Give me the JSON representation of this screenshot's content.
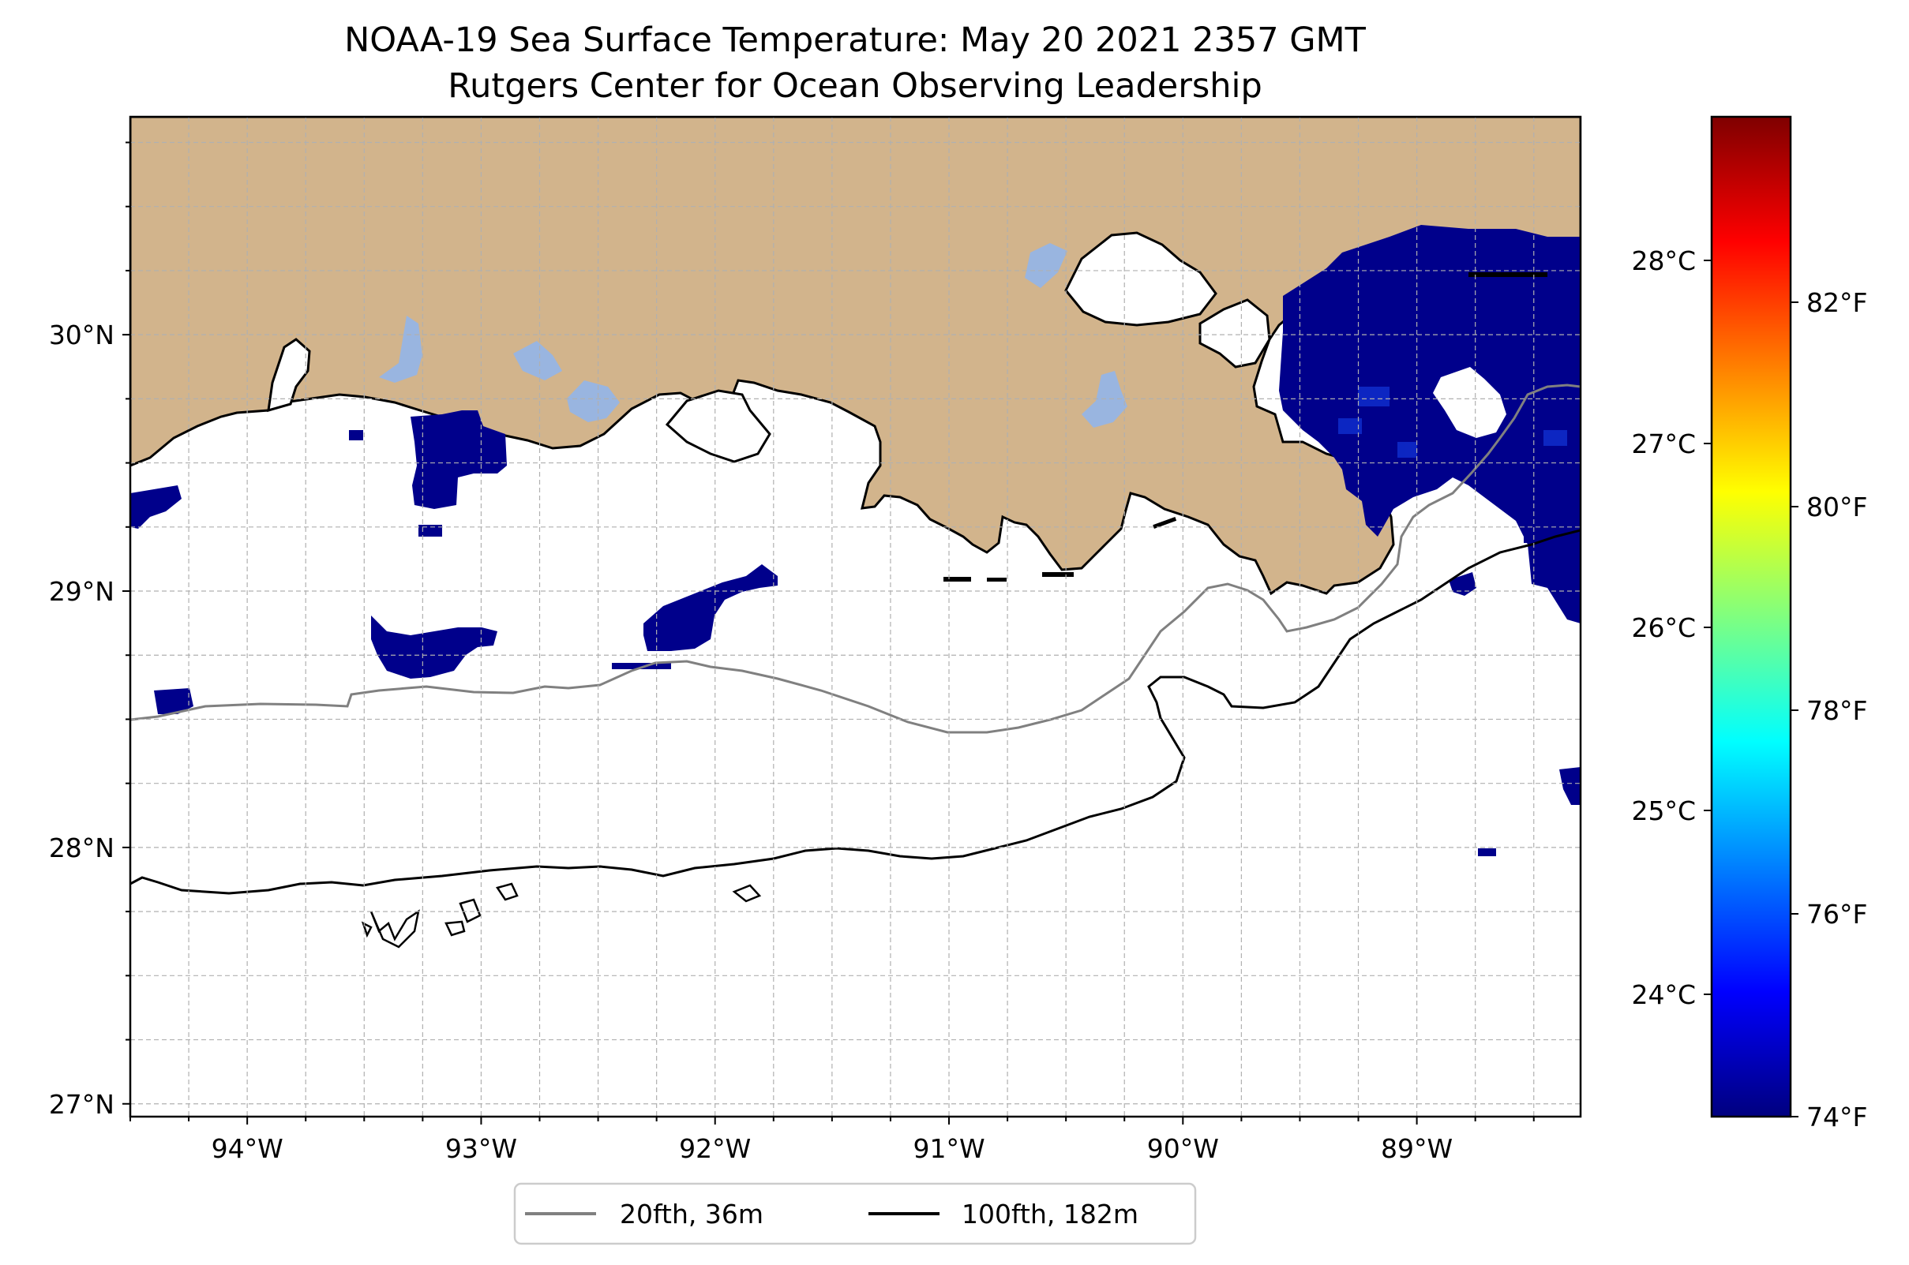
{
  "title": {
    "line1": "NOAA-19 Sea Surface Temperature: May 20 2021 2357 GMT",
    "line2": "Rutgers Center for Ocean Observing Leadership"
  },
  "colors": {
    "land": "#d2b48c",
    "lakes": "#99b5e0",
    "sst_cold": "#00008b",
    "isobath_20fth": "#808080",
    "isobath_100fth": "#000000",
    "grid": "#b0b0b0"
  },
  "map": {
    "lon_range": [
      -94.5,
      -88.3
    ],
    "lat_range": [
      26.95,
      30.85
    ],
    "lon_ticks": [
      {
        "value": -94,
        "label": "94°W"
      },
      {
        "value": -93,
        "label": "93°W"
      },
      {
        "value": -92,
        "label": "92°W"
      },
      {
        "value": -91,
        "label": "91°W"
      },
      {
        "value": -90,
        "label": "90°W"
      },
      {
        "value": -89,
        "label": "89°W"
      }
    ],
    "lat_ticks": [
      {
        "value": 27,
        "label": "27°N"
      },
      {
        "value": 28,
        "label": "28°N"
      },
      {
        "value": 29,
        "label": "29°N"
      },
      {
        "value": 30,
        "label": "30°N"
      }
    ],
    "gridlines": true
  },
  "legend": {
    "placement": "bottom-center",
    "items": [
      {
        "label": "20fth, 36m",
        "color": "#808080"
      },
      {
        "label": "100fth, 182m",
        "color": "#000000"
      }
    ]
  },
  "colorbar": {
    "colormap": "jet",
    "celsius_ticks": [
      "28°C",
      "27°C",
      "26°C",
      "25°C",
      "24°C"
    ],
    "fahrenheit_ticks": [
      "82°F",
      "80°F",
      "78°F",
      "76°F",
      "74°F"
    ]
  }
}
